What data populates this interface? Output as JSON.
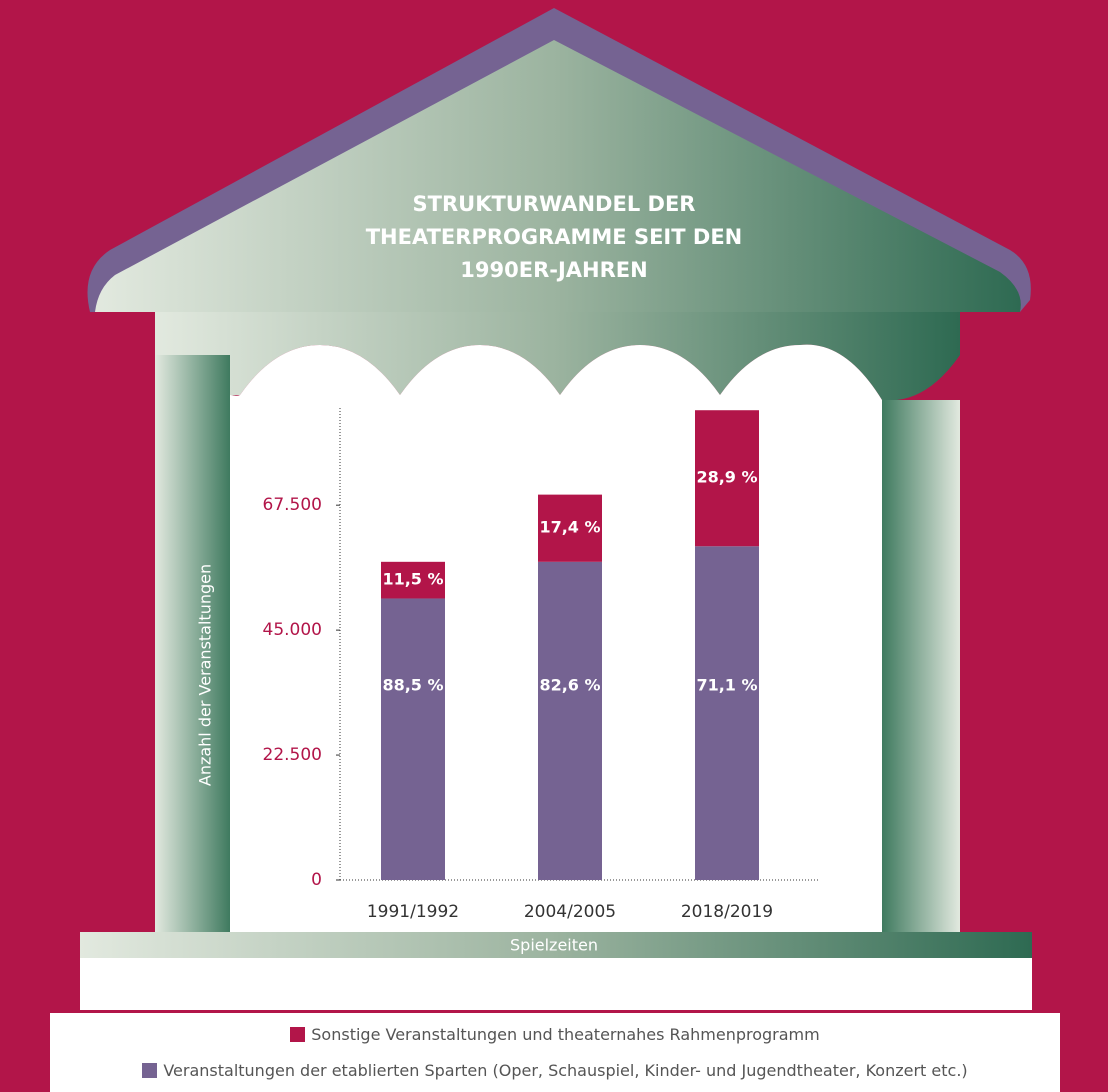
{
  "chart_data": {
    "type": "stacked_bar",
    "title": "STRUKTURWANDEL DER THEATERPROGRAMME SEIT DEN 1990ER-JAHREN",
    "y_label": "Anzahl der Veranstaltungen",
    "x_label": "Spielzeiten",
    "categories": [
      "1991/1992",
      "2004/2005",
      "2018/2019"
    ],
    "series": [
      {
        "name": "Veranstaltungen der etablierten Sparten (Oper, Schauspiel, Kinder- und Jugendtheater, Konzert etc.)",
        "color": "#756392",
        "values": [
          50700,
          57300,
          60100
        ],
        "value_labels": [
          "88,5 %",
          "82,6 %",
          "71,1 %"
        ]
      },
      {
        "name": "Sonstige Veranstaltungen und theaternahes Rahmenprogramm",
        "color": "#b21549",
        "values": [
          6600,
          12100,
          24500
        ],
        "value_labels": [
          "11,5 %",
          "17,4 %",
          "28,9 %"
        ]
      }
    ],
    "ylim": [
      0,
      85000
    ],
    "yticks": [
      0,
      {
        "value": 22500,
        "label": "22.500"
      },
      {
        "value": 45000,
        "label": "45.000"
      },
      {
        "value": 67500,
        "label": "67.500"
      }
    ]
  }
}
